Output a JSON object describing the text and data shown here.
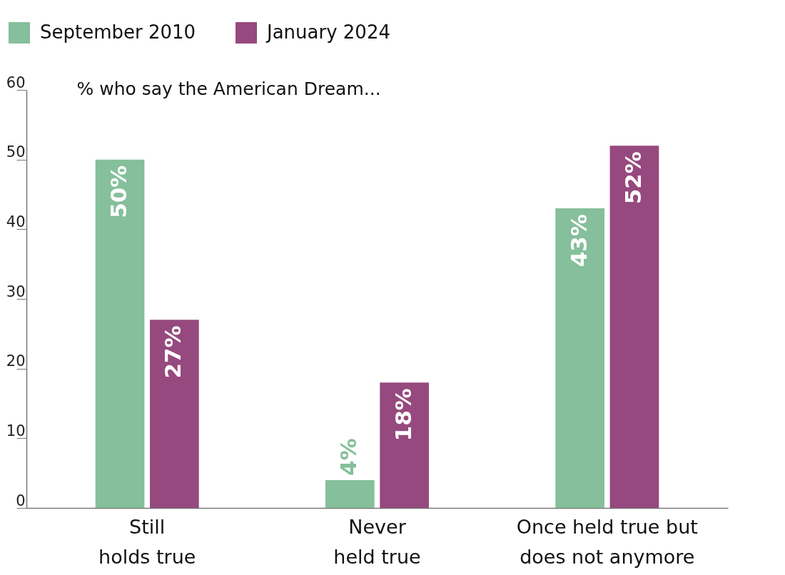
{
  "chart_data": {
    "type": "bar",
    "ylabel": "% who say the American Dream...",
    "categories": [
      "Still holds true",
      "Never held true",
      "Once held true but does not anymore"
    ],
    "series": [
      {
        "name": "September 2010",
        "color": "#86bf9b",
        "values": [
          50,
          4,
          43
        ],
        "value_labels": [
          "50%",
          "4%",
          "43%"
        ]
      },
      {
        "name": "January 2024",
        "color": "#96497e",
        "values": [
          27,
          18,
          52
        ],
        "value_labels": [
          "27%",
          "18%",
          "52%"
        ]
      }
    ],
    "ylim": [
      0,
      60
    ],
    "yticks": [
      0,
      10,
      20,
      30,
      40,
      50,
      60
    ],
    "grid": false,
    "legend": "top left"
  }
}
